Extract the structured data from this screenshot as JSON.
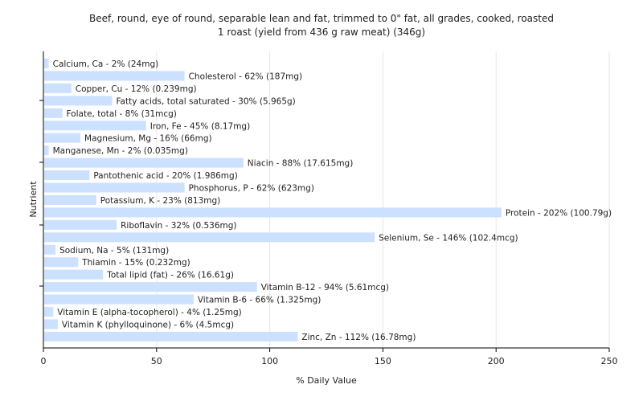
{
  "chart_data": {
    "type": "bar",
    "orientation": "horizontal",
    "title": "Beef, round, eye of round, separable lean and fat, trimmed to 0\" fat, all grades, cooked, roasted",
    "subtitle": "1 roast (yield from 436 g raw meat) (346g)",
    "xlabel": "% Daily Value",
    "ylabel": "Nutrient",
    "xlim": [
      0,
      250
    ],
    "xticks": [
      0,
      50,
      100,
      150,
      200,
      250
    ],
    "grid": true,
    "bar_color": "#cce0ff",
    "categories": [
      "Calcium, Ca",
      "Cholesterol",
      "Copper, Cu",
      "Fatty acids, total saturated",
      "Folate, total",
      "Iron, Fe",
      "Magnesium, Mg",
      "Manganese, Mn",
      "Niacin",
      "Pantothenic acid",
      "Phosphorus, P",
      "Potassium, K",
      "Protein",
      "Riboflavin",
      "Selenium, Se",
      "Sodium, Na",
      "Thiamin",
      "Total lipid (fat)",
      "Vitamin B-12",
      "Vitamin B-6",
      "Vitamin E (alpha-tocopherol)",
      "Vitamin K (phylloquinone)",
      "Zinc, Zn"
    ],
    "values": [
      2,
      62,
      12,
      30,
      8,
      45,
      16,
      2,
      88,
      20,
      62,
      23,
      202,
      32,
      146,
      5,
      15,
      26,
      94,
      66,
      4,
      6,
      112
    ],
    "labels": [
      "Calcium, Ca - 2% (24mg)",
      "Cholesterol - 62% (187mg)",
      "Copper, Cu - 12% (0.239mg)",
      "Fatty acids, total saturated - 30% (5.965g)",
      "Folate, total - 8% (31mcg)",
      "Iron, Fe - 45% (8.17mg)",
      "Magnesium, Mg - 16% (66mg)",
      "Manganese, Mn - 2% (0.035mg)",
      "Niacin - 88% (17.615mg)",
      "Pantothenic acid - 20% (1.986mg)",
      "Phosphorus, P - 62% (623mg)",
      "Potassium, K - 23% (813mg)",
      "Protein - 202% (100.79g)",
      "Riboflavin - 32% (0.536mg)",
      "Selenium, Se - 146% (102.4mcg)",
      "Sodium, Na - 5% (131mg)",
      "Thiamin - 15% (0.232mg)",
      "Total lipid (fat) - 26% (16.61g)",
      "Vitamin B-12 - 94% (5.61mcg)",
      "Vitamin B-6 - 66% (1.325mg)",
      "Vitamin E (alpha-tocopherol) - 4% (1.25mg)",
      "Vitamin K (phylloquinone) - 6% (4.5mcg)",
      "Zinc, Zn - 112% (16.78mg)"
    ]
  }
}
